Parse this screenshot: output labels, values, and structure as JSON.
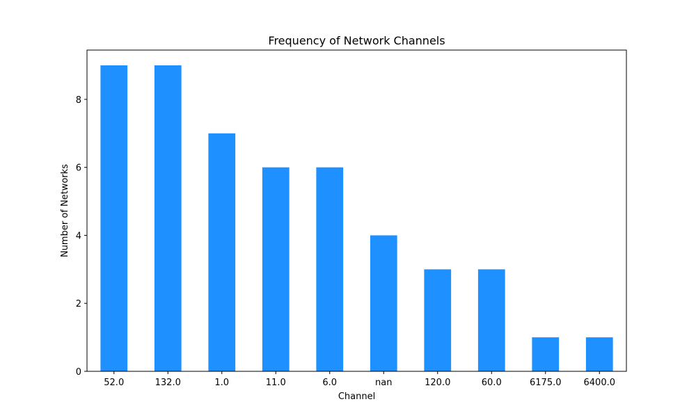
{
  "chart_data": {
    "type": "bar",
    "title": "Frequency of Network Channels",
    "xlabel": "Channel",
    "ylabel": "Number of Networks",
    "categories": [
      "52.0",
      "132.0",
      "1.0",
      "11.0",
      "6.0",
      "nan",
      "120.0",
      "60.0",
      "6175.0",
      "6400.0"
    ],
    "values": [
      9,
      9,
      7,
      6,
      6,
      4,
      3,
      3,
      1,
      1
    ],
    "ylim": [
      0,
      9.45
    ],
    "yticks": [
      0,
      2,
      4,
      6,
      8
    ],
    "bar_color": "#1e90ff",
    "grid": false,
    "legend": "none"
  }
}
